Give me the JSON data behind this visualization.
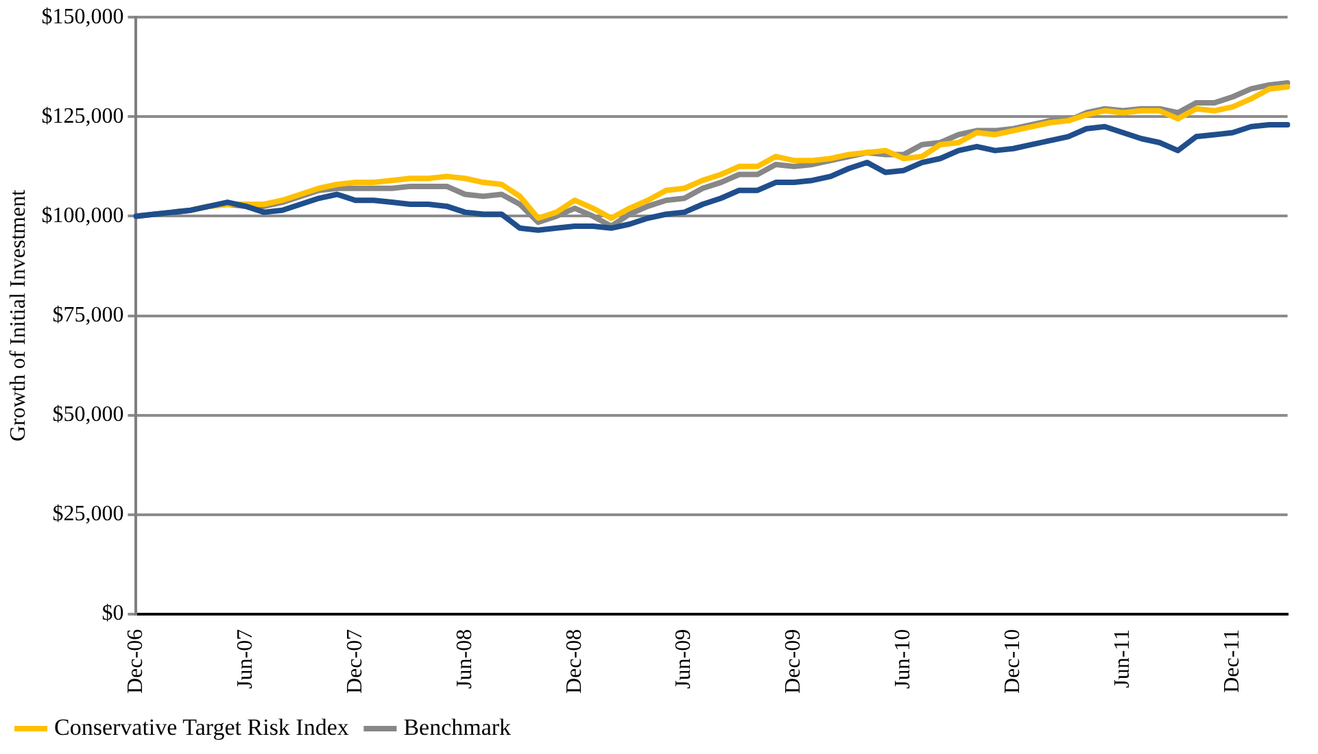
{
  "chart_data": {
    "type": "line",
    "ylabel": "Growth of Initial Investment",
    "categories": [
      "Dec-06",
      null,
      null,
      null,
      null,
      null,
      "Jun-07",
      null,
      null,
      null,
      null,
      null,
      "Dec-07",
      null,
      null,
      null,
      null,
      null,
      "Jun-08",
      null,
      null,
      null,
      null,
      null,
      "Dec-08",
      null,
      null,
      null,
      null,
      null,
      "Jun-09",
      null,
      null,
      null,
      null,
      null,
      "Dec-09",
      null,
      null,
      null,
      null,
      null,
      "Jun-10",
      null,
      null,
      null,
      null,
      null,
      "Dec-10",
      null,
      null,
      null,
      null,
      null,
      "Jun-11",
      null,
      null,
      null,
      null,
      null,
      "Dec-11",
      null,
      null,
      null
    ],
    "series": [
      {
        "color": "#1f4e8c",
        "values": [
          100000,
          100500,
          101000,
          101500,
          102500,
          103500,
          102500,
          101000,
          101500,
          103000,
          104500,
          105500,
          104000,
          104000,
          103500,
          103000,
          103000,
          102500,
          101000,
          100500,
          100500,
          97000,
          96500,
          97000,
          97500,
          97500,
          97000,
          98000,
          99500,
          100500,
          101000,
          103000,
          104500,
          106500,
          106500,
          108500,
          108500,
          109000,
          110000,
          112000,
          113500,
          111000,
          111500,
          113500,
          114500,
          116500,
          117500,
          116500,
          117000,
          118000,
          119000,
          120000,
          122000,
          122500,
          121000,
          119500,
          118500,
          116500,
          120000,
          120500,
          121000,
          122500,
          123000,
          123000
        ]
      },
      {
        "name": "Conservative Target Risk Index",
        "color": "#ffc000",
        "values": [
          null,
          null,
          null,
          101500,
          102500,
          103000,
          103000,
          103000,
          104000,
          105500,
          107000,
          108000,
          108500,
          108500,
          109000,
          109500,
          109500,
          110000,
          109500,
          108500,
          108000,
          105000,
          99500,
          101000,
          104000,
          102000,
          99500,
          102000,
          104000,
          106500,
          107000,
          109000,
          110500,
          112500,
          112500,
          115000,
          114000,
          114000,
          114500,
          115500,
          116000,
          116500,
          114500,
          115000,
          118000,
          118500,
          121000,
          120500,
          121500,
          122500,
          123500,
          124000,
          125500,
          126500,
          126000,
          126500,
          126500,
          124500,
          127000,
          126500,
          127500,
          129500,
          132000,
          132500
        ]
      },
      {
        "name": "Benchmark",
        "color": "#878787",
        "values": [
          100000,
          100500,
          101000,
          101500,
          102500,
          103000,
          102500,
          102500,
          103500,
          105000,
          106500,
          107000,
          107000,
          107000,
          107000,
          107500,
          107500,
          107500,
          105500,
          105000,
          105500,
          103000,
          98500,
          100000,
          102000,
          100000,
          97500,
          100500,
          102500,
          104000,
          104500,
          107000,
          108500,
          110500,
          110500,
          113000,
          112500,
          113000,
          114000,
          115000,
          116000,
          115500,
          115500,
          118000,
          118500,
          120500,
          121500,
          121500,
          122000,
          123000,
          124000,
          124000,
          126000,
          127000,
          126500,
          127000,
          127000,
          126000,
          128500,
          128500,
          130000,
          132000,
          133000,
          133500
        ]
      }
    ],
    "ylim": [
      0,
      150000
    ],
    "yticks": [
      {
        "value": 0,
        "label": "$0"
      },
      {
        "value": 25000,
        "label": "$25,000"
      },
      {
        "value": 50000,
        "label": "$50,000"
      },
      {
        "value": 75000,
        "label": "$75,000"
      },
      {
        "value": 100000,
        "label": "$100,000"
      },
      {
        "value": 125000,
        "label": "$125,000"
      },
      {
        "value": 150000,
        "label": "$150,000"
      }
    ],
    "grid": "y",
    "legend": "bottom",
    "marker": "none",
    "line_style": "solid"
  }
}
